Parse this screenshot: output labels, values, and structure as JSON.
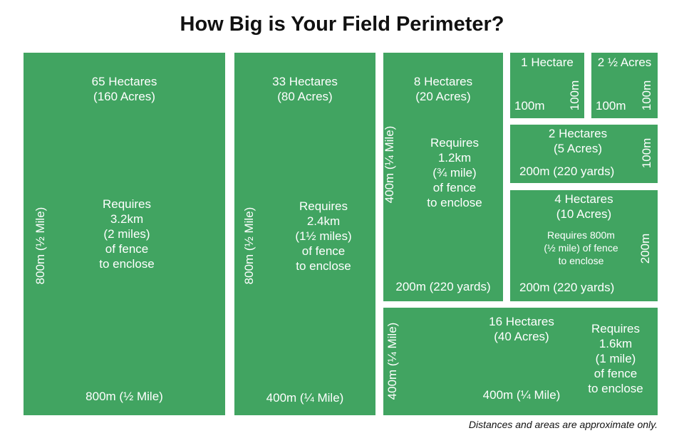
{
  "title": "How Big is Your Field Perimeter?",
  "note": "Distances and areas are approximate only.",
  "fields": {
    "f65": {
      "area": "65 Hectares\n(160 Acres)",
      "fence": "Requires\n3.2km\n(2 miles)\nof fence\nto enclose",
      "side": "800m (½ Mile)",
      "bottom": "800m (½ Mile)"
    },
    "f33": {
      "area": "33 Hectares\n(80 Acres)",
      "fence": "Requires\n2.4km\n(1½ miles)\nof fence\nto enclose",
      "side": "800m (½ Mile)",
      "bottom": "400m (¼ Mile)"
    },
    "f8": {
      "area": "8 Hectares\n(20 Acres)",
      "fence": "Requires\n1.2km\n(¾ mile)\nof fence\nto enclose",
      "side": "400m (¼ Mile)",
      "bottom": "200m (220 yards)"
    },
    "f1": {
      "area": "1 Hectare",
      "bottom": "100m",
      "side": "100m"
    },
    "f25": {
      "area": "2 ½ Acres",
      "bottom": "100m",
      "side": "100m"
    },
    "f2": {
      "area": "2 Hectares\n(5 Acres)",
      "bottom": "200m (220 yards)",
      "side": "100m"
    },
    "f4": {
      "area": "4 Hectares\n(10 Acres)",
      "fence": "Requires 800m\n(½ mile) of fence\nto enclose",
      "bottom": "200m (220 yards)",
      "side": "200m"
    },
    "f16": {
      "area": "16 Hectares\n(40 Acres)",
      "fence": "Requires\n1.6km\n(1 mile)\nof fence\nto enclose",
      "side": "400m (¼ Mile)",
      "bottom": "400m (¼ Mile)"
    }
  },
  "colors": {
    "field": "#41a461"
  }
}
